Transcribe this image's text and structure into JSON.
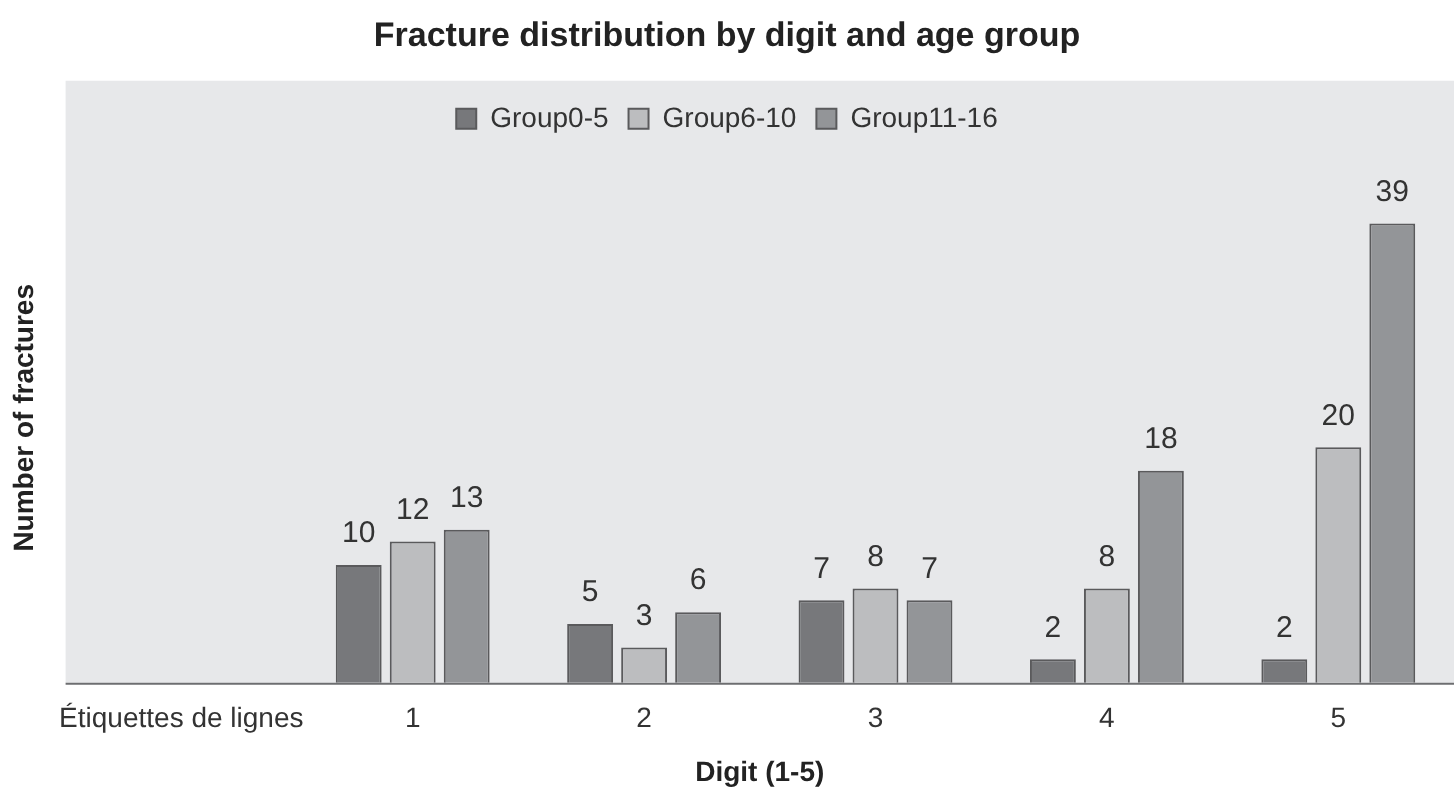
{
  "chart_data": {
    "type": "bar",
    "title": "Fracture distribution by digit and age group",
    "xlabel": "Digit (1-5)",
    "ylabel": "Number of fractures",
    "categories": [
      "Étiquettes de lignes",
      "1",
      "2",
      "3",
      "4",
      "5"
    ],
    "series": [
      {
        "name": "Group0-5",
        "color": "#77787b",
        "values": [
          null,
          10,
          5,
          7,
          2,
          2
        ]
      },
      {
        "name": "Group6-10",
        "color": "#bcbdbf",
        "values": [
          null,
          12,
          3,
          8,
          8,
          20
        ]
      },
      {
        "name": "Group11-16",
        "color": "#939598",
        "values": [
          null,
          13,
          6,
          7,
          18,
          39
        ]
      }
    ],
    "data_labels": true,
    "legend": "top",
    "grid": false,
    "tick_labels": "x"
  }
}
